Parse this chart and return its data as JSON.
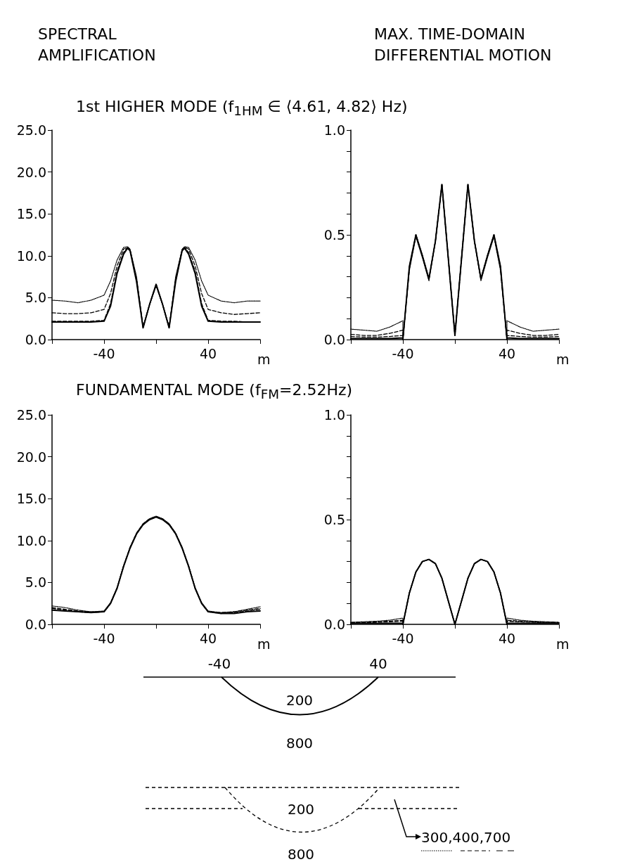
{
  "chart_data": [
    {
      "type": "line",
      "title": "SPECTRAL AMPLIFICATION",
      "subtitle": "1st HIGHER MODE (f$_{1HM}$ ∈ ⟨4.61, 4.82⟩ Hz)",
      "xlabel": "m",
      "grid": false,
      "marker": "none",
      "x": [
        -80,
        -70,
        -60,
        -50,
        -40,
        -35,
        -30,
        -25,
        -22,
        -20,
        -15,
        -10,
        -5,
        0,
        5,
        10,
        15,
        20,
        22,
        25,
        30,
        35,
        40,
        50,
        60,
        70,
        80
      ],
      "xlim": [
        -80,
        80
      ],
      "xticks": [
        {
          "value": -80,
          "label": null
        },
        {
          "value": -40,
          "label": "-40"
        },
        {
          "value": 0,
          "label": null
        },
        {
          "value": 40,
          "label": "40"
        },
        {
          "value": 80,
          "label": null
        }
      ],
      "ylim": [
        0,
        25
      ],
      "yticks": [
        {
          "value": 0,
          "label": "0.0"
        },
        {
          "value": 5,
          "label": "5.0"
        },
        {
          "value": 10,
          "label": "10.0"
        },
        {
          "value": 15,
          "label": "15.0"
        },
        {
          "value": 20,
          "label": "20.0"
        },
        {
          "value": 25,
          "label": "25.0"
        }
      ],
      "series": [
        {
          "color": "#000000",
          "line_style": "solid",
          "values": [
            2.1,
            2.1,
            2.1,
            2.1,
            2.2,
            4.0,
            7.9,
            10.2,
            10.9,
            10.6,
            6.9,
            1.4,
            4.2,
            6.6,
            4.2,
            1.4,
            6.9,
            10.6,
            10.9,
            10.2,
            7.9,
            4.0,
            2.2,
            2.1,
            2.1,
            2.1,
            2.1
          ]
        },
        {
          "color": "#000000",
          "line_style": "dotted",
          "values": [
            4.7,
            4.6,
            4.4,
            4.7,
            5.3,
            7.0,
            9.5,
            11.0,
            11.1,
            10.8,
            7.5,
            1.5,
            4.2,
            6.4,
            4.2,
            1.5,
            7.5,
            10.8,
            11.1,
            11.0,
            9.5,
            7.0,
            5.3,
            4.6,
            4.4,
            4.6,
            4.6
          ]
        },
        {
          "color": "#000000",
          "line_style": "dashed",
          "values": [
            3.2,
            3.1,
            3.1,
            3.2,
            3.6,
            5.5,
            8.8,
            10.8,
            11.0,
            10.7,
            7.2,
            1.5,
            4.2,
            6.5,
            4.2,
            1.5,
            7.2,
            10.7,
            11.0,
            10.8,
            8.8,
            5.5,
            3.6,
            3.2,
            3.0,
            3.1,
            3.2
          ]
        },
        {
          "color": "#000000",
          "line_style": "dashed",
          "values": [
            2.2,
            2.2,
            2.2,
            2.2,
            2.3,
            4.3,
            8.2,
            10.4,
            11.0,
            10.6,
            7.0,
            1.4,
            4.2,
            6.6,
            4.2,
            1.4,
            7.0,
            10.6,
            11.0,
            10.4,
            8.2,
            4.3,
            2.3,
            2.2,
            2.2,
            2.1,
            2.1
          ]
        }
      ]
    },
    {
      "type": "line",
      "title": "MAX. TIME-DOMAIN DIFFERENTIAL MOTION",
      "xlabel": "m",
      "grid": false,
      "marker": "none",
      "x": [
        -80,
        -70,
        -60,
        -50,
        -40,
        -40,
        -35,
        -30,
        -25,
        -20,
        -15,
        -10,
        -5,
        0,
        5,
        10,
        15,
        20,
        25,
        30,
        35,
        40,
        40,
        50,
        60,
        70,
        80
      ],
      "xlim": [
        -80,
        80
      ],
      "xticks": [
        {
          "value": -80,
          "label": null
        },
        {
          "value": -40,
          "label": "-40"
        },
        {
          "value": 0,
          "label": null
        },
        {
          "value": 40,
          "label": "40"
        },
        {
          "value": 80,
          "label": null
        }
      ],
      "ylim": [
        0,
        1
      ],
      "yticks": [
        {
          "value": 0,
          "label": "0.0"
        },
        {
          "value": 0.1,
          "label": null
        },
        {
          "value": 0.2,
          "label": null
        },
        {
          "value": 0.3,
          "label": null
        },
        {
          "value": 0.4,
          "label": null
        },
        {
          "value": 0.5,
          "label": "0.5"
        },
        {
          "value": 0.6,
          "label": null
        },
        {
          "value": 0.7,
          "label": null
        },
        {
          "value": 0.8,
          "label": null
        },
        {
          "value": 0.9,
          "label": null
        },
        {
          "value": 1,
          "label": "1.0"
        }
      ],
      "series": [
        {
          "color": "#000000",
          "line_style": "solid",
          "values": [
            0.005,
            0.005,
            0.005,
            0.005,
            0.008,
            0,
            0.35,
            0.5,
            0.4,
            0.29,
            0.47,
            0.74,
            0.38,
            0.02,
            0.38,
            0.74,
            0.47,
            0.29,
            0.4,
            0.5,
            0.35,
            0,
            0.008,
            0.005,
            0.005,
            0.005,
            0.005
          ]
        },
        {
          "color": "#000000",
          "line_style": "dotted",
          "values": [
            0.05,
            0.045,
            0.04,
            0.06,
            0.09,
            0,
            0.33,
            0.49,
            0.39,
            0.28,
            0.47,
            0.74,
            0.39,
            0.02,
            0.39,
            0.74,
            0.47,
            0.28,
            0.39,
            0.49,
            0.33,
            0,
            0.09,
            0.06,
            0.04,
            0.045,
            0.05
          ]
        },
        {
          "color": "#000000",
          "line_style": "dashed",
          "values": [
            0.025,
            0.02,
            0.02,
            0.03,
            0.045,
            0,
            0.34,
            0.5,
            0.4,
            0.29,
            0.47,
            0.74,
            0.38,
            0.02,
            0.38,
            0.74,
            0.47,
            0.29,
            0.4,
            0.5,
            0.34,
            0,
            0.045,
            0.03,
            0.02,
            0.02,
            0.025
          ]
        },
        {
          "color": "#000000",
          "line_style": "dashed",
          "values": [
            0.015,
            0.012,
            0.012,
            0.015,
            0.02,
            0,
            0.35,
            0.5,
            0.4,
            0.29,
            0.47,
            0.74,
            0.38,
            0.02,
            0.38,
            0.74,
            0.47,
            0.29,
            0.4,
            0.5,
            0.35,
            0,
            0.02,
            0.015,
            0.012,
            0.012,
            0.015
          ]
        }
      ]
    },
    {
      "type": "line",
      "subtitle": "FUNDAMENTAL MODE (f$_{FM}$=2.52Hz)",
      "xlabel": "m",
      "grid": false,
      "marker": "none",
      "x": [
        -80,
        -70,
        -60,
        -50,
        -40,
        -35,
        -30,
        -25,
        -20,
        -15,
        -10,
        -5,
        0,
        5,
        10,
        15,
        20,
        25,
        30,
        35,
        40,
        50,
        60,
        70,
        80
      ],
      "xlim": [
        -80,
        80
      ],
      "xticks": [
        {
          "value": -80,
          "label": null
        },
        {
          "value": -40,
          "label": "-40"
        },
        {
          "value": 0,
          "label": null
        },
        {
          "value": 40,
          "label": "40"
        },
        {
          "value": 80,
          "label": null
        }
      ],
      "ylim": [
        0,
        25
      ],
      "yticks": [
        {
          "value": 0,
          "label": "0.0"
        },
        {
          "value": 5,
          "label": "5.0"
        },
        {
          "value": 10,
          "label": "10.0"
        },
        {
          "value": 15,
          "label": "15.0"
        },
        {
          "value": 20,
          "label": "20.0"
        },
        {
          "value": 25,
          "label": "25.0"
        }
      ],
      "series": [
        {
          "color": "#000000",
          "line_style": "solid",
          "values": [
            1.7,
            1.6,
            1.5,
            1.4,
            1.5,
            2.5,
            4.3,
            6.9,
            9.1,
            10.8,
            11.9,
            12.5,
            12.8,
            12.5,
            11.9,
            10.8,
            9.1,
            6.9,
            4.3,
            2.5,
            1.5,
            1.3,
            1.3,
            1.5,
            1.6
          ]
        },
        {
          "color": "#000000",
          "line_style": "dotted",
          "values": [
            2.2,
            2.0,
            1.7,
            1.5,
            1.6,
            2.6,
            4.4,
            7.0,
            9.2,
            10.9,
            12.0,
            12.6,
            12.9,
            12.6,
            12.0,
            10.9,
            9.2,
            7.0,
            4.4,
            2.6,
            1.6,
            1.4,
            1.5,
            1.8,
            2.1
          ]
        },
        {
          "color": "#000000",
          "line_style": "dashed",
          "values": [
            2.0,
            1.8,
            1.6,
            1.5,
            1.5,
            2.5,
            4.3,
            7.0,
            9.2,
            10.9,
            12.0,
            12.6,
            12.9,
            12.6,
            12.0,
            10.9,
            9.2,
            7.0,
            4.3,
            2.5,
            1.5,
            1.4,
            1.5,
            1.7,
            1.9
          ]
        },
        {
          "color": "#000000",
          "line_style": "dashed",
          "values": [
            1.9,
            1.7,
            1.5,
            1.4,
            1.5,
            2.5,
            4.3,
            6.9,
            9.1,
            10.8,
            11.9,
            12.5,
            12.8,
            12.5,
            11.9,
            10.8,
            9.1,
            6.9,
            4.3,
            2.5,
            1.5,
            1.3,
            1.4,
            1.6,
            1.8
          ]
        }
      ]
    },
    {
      "type": "line",
      "xlabel": "m",
      "grid": false,
      "marker": "none",
      "x": [
        -80,
        -60,
        -50,
        -40,
        -40,
        -35,
        -30,
        -25,
        -20,
        -15,
        -10,
        -5,
        0,
        5,
        10,
        15,
        20,
        25,
        30,
        35,
        40,
        40,
        50,
        60,
        80
      ],
      "xlim": [
        -80,
        80
      ],
      "xticks": [
        {
          "value": -80,
          "label": null
        },
        {
          "value": -40,
          "label": "-40"
        },
        {
          "value": 0,
          "label": null
        },
        {
          "value": 40,
          "label": "40"
        },
        {
          "value": 80,
          "label": null
        }
      ],
      "ylim": [
        0,
        1
      ],
      "yticks": [
        {
          "value": 0,
          "label": "0.0"
        },
        {
          "value": 0.1,
          "label": null
        },
        {
          "value": 0.2,
          "label": null
        },
        {
          "value": 0.3,
          "label": null
        },
        {
          "value": 0.4,
          "label": null
        },
        {
          "value": 0.5,
          "label": "0.5"
        },
        {
          "value": 0.6,
          "label": null
        },
        {
          "value": 0.7,
          "label": null
        },
        {
          "value": 0.8,
          "label": null
        },
        {
          "value": 0.9,
          "label": null
        },
        {
          "value": 1,
          "label": "1.0"
        }
      ],
      "series": [
        {
          "color": "#000000",
          "line_style": "solid",
          "values": [
            0.005,
            0.005,
            0.005,
            0.005,
            0,
            0.15,
            0.25,
            0.3,
            0.31,
            0.29,
            0.22,
            0.11,
            0,
            0.11,
            0.22,
            0.29,
            0.31,
            0.3,
            0.25,
            0.15,
            0,
            0.005,
            0.005,
            0.005,
            0.005
          ]
        },
        {
          "color": "#000000",
          "line_style": "dotted",
          "values": [
            0.01,
            0.015,
            0.02,
            0.03,
            0,
            0.15,
            0.25,
            0.3,
            0.31,
            0.29,
            0.22,
            0.11,
            0,
            0.11,
            0.22,
            0.29,
            0.31,
            0.3,
            0.25,
            0.15,
            0,
            0.03,
            0.02,
            0.015,
            0.01
          ]
        },
        {
          "color": "#000000",
          "line_style": "dashed",
          "values": [
            0.008,
            0.012,
            0.015,
            0.02,
            0,
            0.15,
            0.25,
            0.3,
            0.31,
            0.29,
            0.22,
            0.11,
            0,
            0.11,
            0.22,
            0.29,
            0.31,
            0.3,
            0.25,
            0.15,
            0,
            0.02,
            0.015,
            0.012,
            0.008
          ]
        },
        {
          "color": "#000000",
          "line_style": "dashed",
          "values": [
            0.005,
            0.01,
            0.012,
            0.015,
            0,
            0.15,
            0.25,
            0.3,
            0.31,
            0.29,
            0.22,
            0.11,
            0,
            0.11,
            0.22,
            0.29,
            0.31,
            0.3,
            0.25,
            0.15,
            0,
            0.015,
            0.012,
            0.01,
            0.005
          ]
        }
      ]
    },
    {
      "type": "other",
      "annotations": [
        "-40",
        "40",
        "200",
        "800",
        "200",
        "800",
        "300,400,700"
      ]
    }
  ]
}
